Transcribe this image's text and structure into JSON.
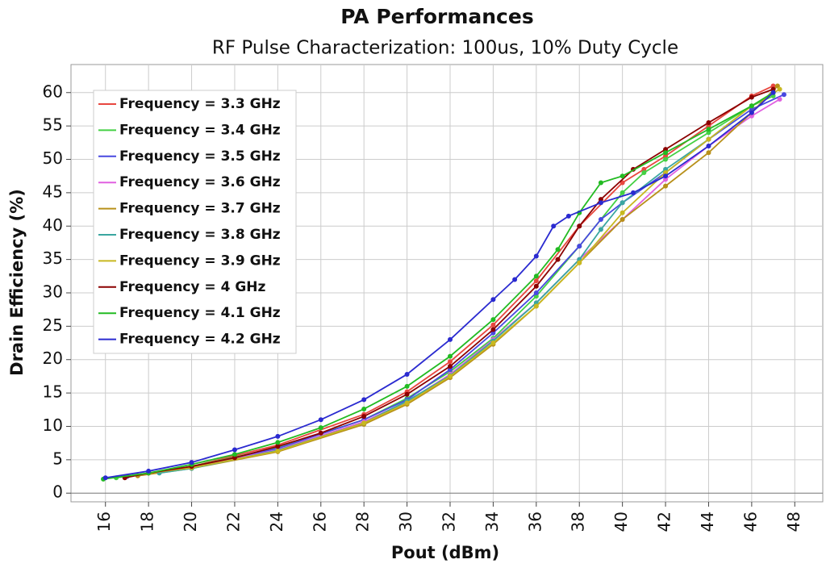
{
  "chart_data": {
    "type": "line",
    "title": "PA Performances",
    "subtitle": "RF Pulse Characterization: 100us, 10% Duty Cycle",
    "x_label": "Pout (dBm)",
    "y_label": "Drain Efficiency (%)",
    "xlim": [
      14.4,
      49.3
    ],
    "ylim": [
      -1.3,
      64.2
    ],
    "xticks": [
      16,
      18,
      20,
      22,
      24,
      26,
      28,
      30,
      32,
      34,
      36,
      38,
      40,
      42,
      44,
      46,
      48
    ],
    "yticks": [
      0,
      5,
      10,
      15,
      20,
      25,
      30,
      35,
      40,
      45,
      50,
      55,
      60
    ],
    "grid": true,
    "legend": "upper left",
    "series": [
      {
        "name": "Frequency = 3.3 GHz",
        "color": "#e8473f",
        "x": [
          17,
          20,
          24,
          28,
          30,
          32,
          34,
          36,
          38,
          40,
          41,
          42,
          44,
          46,
          47
        ],
        "values": [
          2.5,
          4,
          7.2,
          11.8,
          15.2,
          19.7,
          25.2,
          31.8,
          40,
          46.5,
          48.5,
          50.5,
          55,
          59.5,
          61
        ]
      },
      {
        "name": "Frequency = 3.4 GHz",
        "color": "#44d044",
        "x": [
          16.5,
          20,
          24,
          28,
          30,
          32,
          34,
          36,
          38,
          40,
          41,
          42,
          44,
          46,
          47
        ],
        "values": [
          2.3,
          4,
          6.8,
          11,
          14.2,
          18.2,
          23.2,
          29.5,
          37,
          45,
          48,
          50,
          54,
          58,
          59.5
        ]
      },
      {
        "name": "Frequency = 3.5 GHz",
        "color": "#4848e0",
        "x": [
          17,
          20,
          24,
          28,
          30,
          32,
          34,
          36,
          38,
          39,
          40,
          42,
          44,
          46,
          47.5
        ],
        "values": [
          2.5,
          3.9,
          6.7,
          11,
          14,
          18.5,
          24,
          30,
          37,
          41,
          43.5,
          48,
          53,
          57.5,
          59.7
        ]
      },
      {
        "name": "Frequency = 3.6 GHz",
        "color": "#e060e0",
        "x": [
          17.5,
          20,
          24,
          28,
          30,
          32,
          34,
          36,
          38,
          40,
          42,
          44,
          46,
          47.3
        ],
        "values": [
          2.6,
          3.8,
          6.5,
          10.7,
          13.7,
          17.8,
          23,
          28.5,
          35,
          41,
          47,
          52,
          56.5,
          59
        ]
      },
      {
        "name": "Frequency = 3.7 GHz",
        "color": "#b8901a",
        "x": [
          17.5,
          20,
          24,
          28,
          30,
          32,
          34,
          36,
          38,
          40,
          42,
          44,
          46,
          47.2
        ],
        "values": [
          2.6,
          3.7,
          6.2,
          10.3,
          13.3,
          17.3,
          22.3,
          28,
          34.5,
          41,
          46,
          51,
          57,
          61
        ]
      },
      {
        "name": "Frequency = 3.8 GHz",
        "color": "#3aa6a0",
        "x": [
          18.5,
          20,
          24,
          28,
          30,
          32,
          34,
          36,
          38,
          39,
          40,
          42,
          44,
          46,
          47
        ],
        "values": [
          3,
          3.7,
          6.4,
          10.5,
          13.8,
          17.6,
          22.8,
          28.5,
          35,
          39.5,
          43.5,
          48.5,
          53,
          58,
          60
        ]
      },
      {
        "name": "Frequency = 3.9 GHz",
        "color": "#c8b820",
        "x": [
          18,
          20,
          24,
          28,
          30,
          32,
          34,
          36,
          38,
          40,
          42,
          44,
          46,
          47.3
        ],
        "values": [
          3,
          3.8,
          6.3,
          10.5,
          13.5,
          17.5,
          22.5,
          28,
          34.5,
          42,
          48,
          53,
          58,
          60.5
        ]
      },
      {
        "name": "Frequency = 4 GHz",
        "color": "#8b0000",
        "x": [
          16.9,
          18,
          20,
          22,
          24,
          26,
          28,
          30,
          32,
          34,
          36,
          37,
          38,
          39,
          40.5,
          42,
          44,
          46,
          47
        ],
        "values": [
          2.3,
          3,
          4,
          5.3,
          7,
          9,
          11.5,
          14.8,
          19,
          24.5,
          31,
          35,
          40,
          44,
          48.5,
          51.5,
          55.5,
          59.3,
          60.5
        ]
      },
      {
        "name": "Frequency = 4.1 GHz",
        "color": "#22bb22",
        "x": [
          15.9,
          18,
          20,
          22,
          24,
          26,
          28,
          30,
          32,
          34,
          36,
          37,
          38,
          39,
          40,
          42,
          44,
          46,
          47
        ],
        "values": [
          2.1,
          3,
          4.3,
          5.8,
          7.6,
          9.8,
          12.6,
          16,
          20.5,
          26,
          32.5,
          36.5,
          42,
          46.5,
          47.5,
          51,
          54.5,
          58,
          60
        ]
      },
      {
        "name": "Frequency = 4.2 GHz",
        "color": "#2a2ad0",
        "x": [
          16,
          18,
          20,
          22,
          24,
          26,
          28,
          30,
          32,
          34,
          35,
          36,
          36.8,
          37.5,
          39,
          40.5,
          42,
          44,
          46,
          47
        ],
        "values": [
          2.3,
          3.3,
          4.6,
          6.5,
          8.5,
          11,
          14,
          17.8,
          23,
          29,
          32,
          35.5,
          40,
          41.5,
          43.5,
          45,
          47.5,
          52,
          57,
          60
        ]
      }
    ]
  }
}
